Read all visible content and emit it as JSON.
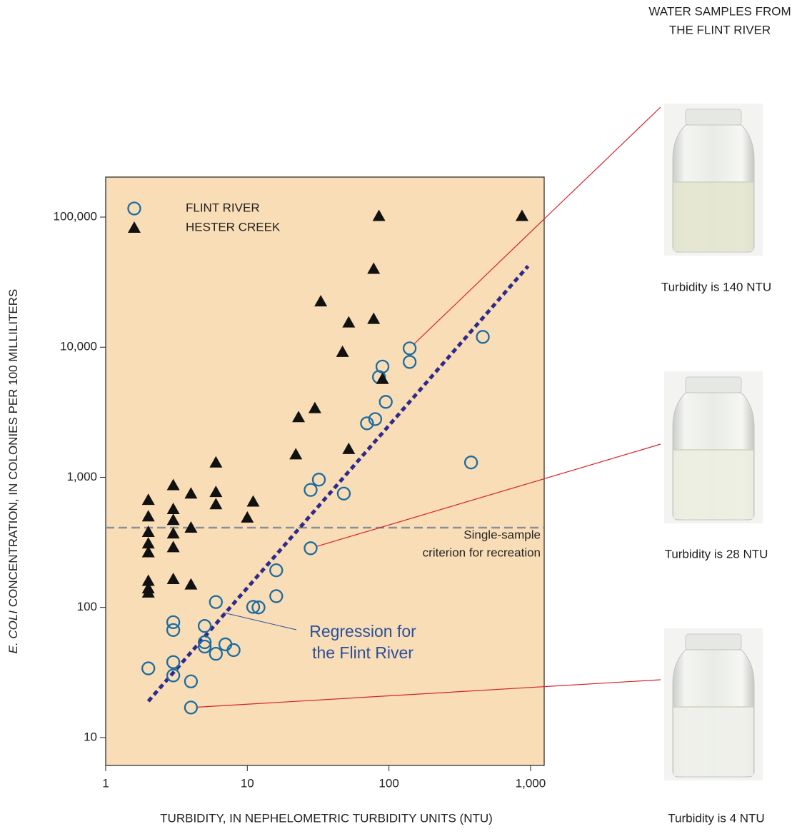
{
  "chart_data": {
    "type": "scatter",
    "x_label": "TURBIDITY, IN NEPHELOMETRIC TURBIDITY UNITS (NTU)",
    "y_label_italic": "E. COLI",
    "y_label": " CONCENTRATION, IN COLONIES PER 100 MILLILITERS",
    "log_x": true,
    "log_y": true,
    "xlim": [
      1,
      1248
    ],
    "ylim": [
      6.1,
      203000
    ],
    "xticks": [
      1,
      10,
      100,
      {
        "value": 1000,
        "label": "1,000"
      }
    ],
    "yticks": [
      10,
      100,
      {
        "value": 1000,
        "label": "1,000"
      },
      {
        "value": 10000,
        "label": "10,000"
      },
      {
        "value": 100000,
        "label": "100,000"
      }
    ],
    "background": "#f9ddb7",
    "legend": "top-left",
    "series": [
      {
        "name": "FLINT RIVER",
        "marker": "circle",
        "color": "#1b6ca0",
        "x": [
          2,
          3,
          3,
          3,
          3,
          4,
          4,
          5,
          5,
          5,
          6,
          6,
          7,
          8,
          11,
          12,
          16,
          16,
          28,
          32,
          28,
          48,
          70,
          80,
          85,
          90,
          95,
          140,
          140,
          380,
          460
        ],
        "y": [
          34,
          30,
          38,
          67,
          77,
          17,
          27,
          72,
          54,
          50,
          110,
          44,
          52,
          47,
          101,
          100,
          193,
          122,
          800,
          960,
          285,
          750,
          2600,
          2800,
          5900,
          7100,
          3800,
          9800,
          7700,
          1300,
          12000
        ]
      },
      {
        "name": "HESTER CREEK",
        "marker": "triangle",
        "color": "#111111",
        "x": [
          2,
          2,
          2,
          2,
          2,
          2,
          2,
          2,
          3,
          3,
          3,
          3,
          3,
          3,
          4,
          4,
          4,
          6,
          6,
          6,
          10,
          11,
          22,
          23,
          30,
          33,
          47,
          52,
          52,
          78,
          78,
          85,
          90,
          870
        ],
        "y": [
          670,
          500,
          380,
          310,
          265,
          160,
          140,
          130,
          870,
          570,
          470,
          370,
          290,
          165,
          750,
          410,
          150,
          1300,
          770,
          620,
          490,
          650,
          1500,
          2900,
          3400,
          22500,
          9200,
          15500,
          1650,
          16500,
          40000,
          102000,
          5700,
          102000
        ]
      }
    ],
    "regression": {
      "x": [
        2,
        960
      ],
      "y": [
        19,
        42000
      ],
      "color": "#2e2a8c",
      "label": [
        "Regression for",
        "the Flint River"
      ]
    },
    "threshold": {
      "value": 410,
      "color": "#8a8f99",
      "label": [
        "Single-sample",
        "criterion for recreation"
      ]
    }
  },
  "photos": {
    "title": [
      "WATER SAMPLES FROM",
      "THE FLINT RIVER"
    ],
    "items": [
      {
        "caption": "Turbidity is 140 NTU"
      },
      {
        "caption": "Turbidity is 28 NTU"
      },
      {
        "caption": "Turbidity is 4 NTU"
      }
    ]
  }
}
